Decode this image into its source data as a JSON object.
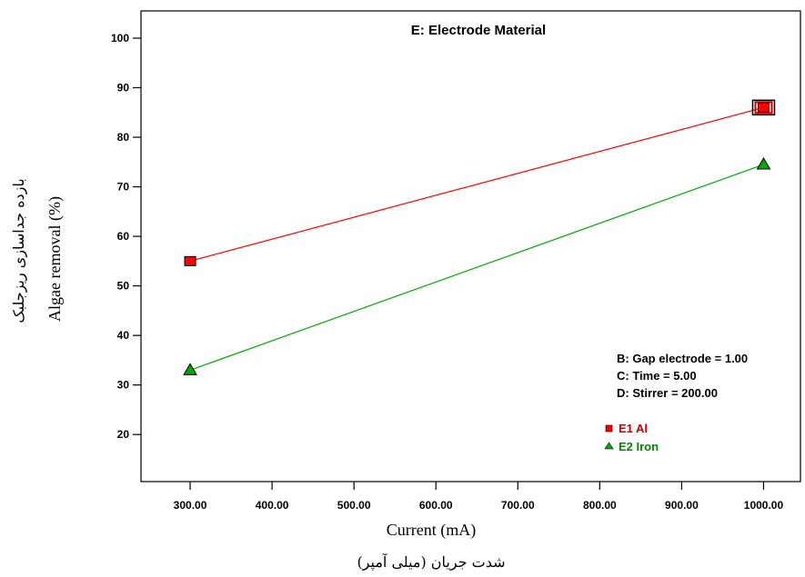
{
  "chart_data": {
    "type": "line",
    "title": "E: Electrode Material",
    "xlabel": "Current (mA)",
    "xlabel_fa": "شدت جریان (میلی آمپر)",
    "ylabel": "Algae removal (%)",
    "ylabel_fa": "بازده جداسازی ریزجلبک",
    "x": [
      300,
      1000
    ],
    "xticks": [
      "300.00",
      "400.00",
      "500.00",
      "600.00",
      "700.00",
      "800.00",
      "900.00",
      "1000.00"
    ],
    "xtick_values": [
      300,
      400,
      500,
      600,
      700,
      800,
      900,
      1000
    ],
    "yticks": [
      20,
      30,
      40,
      50,
      60,
      70,
      80,
      90,
      100
    ],
    "xlim": [
      240,
      1045
    ],
    "ylim": [
      10.5,
      105.5
    ],
    "series": [
      {
        "name": "E1 Al",
        "values": [
          55,
          86
        ],
        "color": "#ff0000",
        "marker": "square"
      },
      {
        "name": "E2 Iron",
        "values": [
          33,
          74.5
        ],
        "color": "#00aa00",
        "marker": "triangle"
      }
    ],
    "factors": [
      "B: Gap electrode = 1.00",
      "C: Time = 5.00",
      "D: Stirrer = 200.00"
    ],
    "grid": false,
    "legend_position": "bottom-right"
  }
}
